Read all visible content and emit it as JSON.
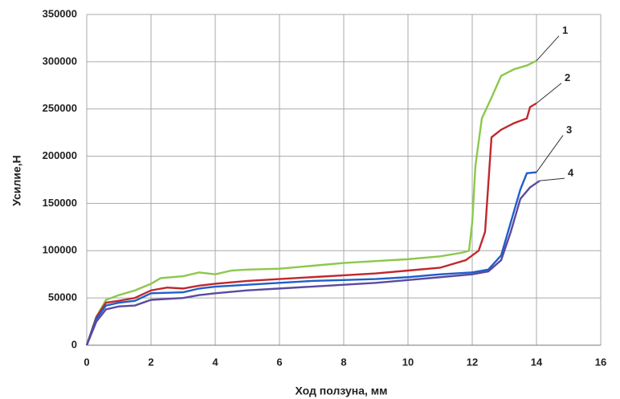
{
  "chart_data": {
    "type": "line",
    "x_label": "Ход ползуна, мм",
    "y_label": "Усилие,Н",
    "xlim": [
      0,
      16
    ],
    "xticks": [
      0,
      2,
      4,
      6,
      8,
      10,
      12,
      14,
      16
    ],
    "ylim": [
      0,
      350000
    ],
    "yticks": [
      0,
      50000,
      100000,
      150000,
      200000,
      250000,
      300000,
      350000
    ],
    "grid": true,
    "series": [
      {
        "name": "1",
        "color": "#8cc84b",
        "x": [
          0,
          0.3,
          0.6,
          1,
          1.5,
          2,
          2.3,
          3,
          3.5,
          4,
          4.5,
          5,
          6,
          7,
          8,
          9,
          10,
          11,
          11.7,
          11.9,
          12,
          12.1,
          12.3,
          12.6,
          12.9,
          13.3,
          13.7,
          14
        ],
        "values": [
          0,
          30000,
          48000,
          53000,
          58000,
          65000,
          71000,
          73000,
          77000,
          75000,
          79000,
          80000,
          81000,
          84000,
          87000,
          89000,
          91000,
          94000,
          98000,
          100000,
          130000,
          190000,
          240000,
          262000,
          285000,
          292000,
          296000,
          301000
        ]
      },
      {
        "name": "2",
        "color": "#c0282d",
        "x": [
          0,
          0.3,
          0.6,
          1,
          1.5,
          2,
          2.5,
          3,
          3.5,
          4,
          5,
          6,
          7,
          8,
          9,
          10,
          11,
          11.8,
          12.2,
          12.4,
          12.6,
          12.9,
          13.3,
          13.7,
          13.8,
          14
        ],
        "values": [
          0,
          30000,
          45000,
          47000,
          50000,
          58000,
          61000,
          60000,
          63000,
          65000,
          68000,
          70000,
          72000,
          74000,
          76000,
          79000,
          82000,
          90000,
          100000,
          120000,
          220000,
          228000,
          235000,
          240000,
          252000,
          256000
        ]
      },
      {
        "name": "3",
        "color": "#1f5fc8",
        "x": [
          0,
          0.3,
          0.6,
          1,
          1.5,
          2,
          3,
          3.5,
          4,
          5,
          6,
          7,
          8,
          9,
          10,
          11,
          12,
          12.5,
          12.9,
          13.2,
          13.5,
          13.7,
          14
        ],
        "values": [
          0,
          28000,
          42000,
          45000,
          47000,
          55000,
          56000,
          60000,
          62000,
          64000,
          66000,
          68000,
          69000,
          70000,
          72000,
          75000,
          77000,
          80000,
          95000,
          130000,
          165000,
          182000,
          183000
        ]
      },
      {
        "name": "4",
        "color": "#5a4aa0",
        "x": [
          0,
          0.3,
          0.6,
          1,
          1.5,
          2,
          3,
          3.5,
          4,
          5,
          6,
          7,
          8,
          9,
          10,
          11,
          12,
          12.5,
          12.9,
          13.2,
          13.5,
          13.8,
          14.1
        ],
        "values": [
          0,
          25000,
          38000,
          41000,
          42000,
          48000,
          50000,
          53000,
          55000,
          58000,
          60000,
          62000,
          64000,
          66000,
          69000,
          72000,
          75000,
          78000,
          90000,
          120000,
          155000,
          167000,
          174000
        ]
      }
    ]
  }
}
